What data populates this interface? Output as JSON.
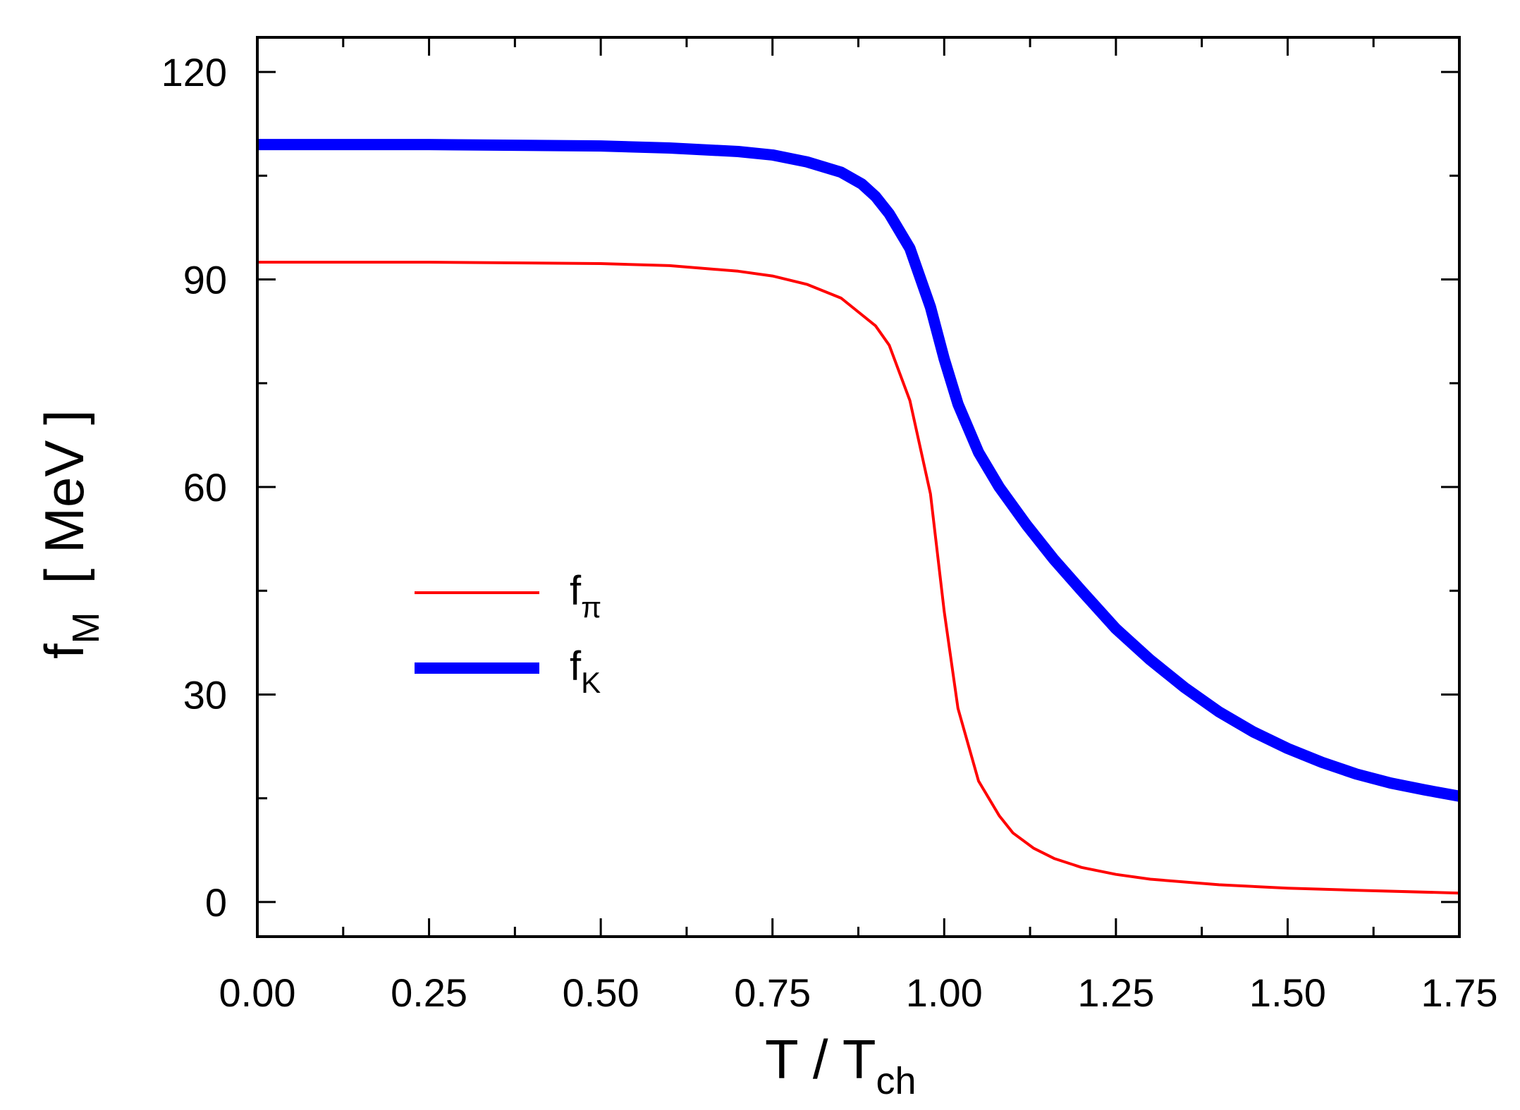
{
  "chart_data": {
    "type": "line",
    "title": "",
    "xlabel": {
      "main": "T / T",
      "sub": "ch"
    },
    "ylabel": {
      "main": "f",
      "sub": "M",
      "unit": "[ MeV ]"
    },
    "xlim": [
      0.0,
      1.75
    ],
    "ylim": [
      -5,
      125
    ],
    "x_ticks": [
      0.0,
      0.25,
      0.5,
      0.75,
      1.0,
      1.25,
      1.5,
      1.75
    ],
    "x_tick_labels": [
      "0.00",
      "0.25",
      "0.50",
      "0.75",
      "1.00",
      "1.25",
      "1.50",
      "1.75"
    ],
    "y_ticks": [
      0,
      30,
      60,
      90,
      120
    ],
    "y_tick_labels": [
      "0",
      "30",
      "60",
      "90",
      "120"
    ],
    "x_minor_step": 0.125,
    "y_minor_step": 15,
    "grid": false,
    "legend_position": "center-left",
    "series": [
      {
        "name": "f_pi",
        "label_main": "f",
        "label_sub": "π",
        "color": "#ff0000",
        "x": [
          0.0,
          0.25,
          0.5,
          0.6,
          0.7,
          0.75,
          0.8,
          0.85,
          0.9,
          0.92,
          0.95,
          0.98,
          1.0,
          1.02,
          1.05,
          1.08,
          1.1,
          1.13,
          1.16,
          1.2,
          1.25,
          1.3,
          1.4,
          1.5,
          1.6,
          1.75
        ],
        "y": [
          92.5,
          92.5,
          92.3,
          92.0,
          91.2,
          90.5,
          89.3,
          87.3,
          83.3,
          80.5,
          72.5,
          59.0,
          42.0,
          28.0,
          17.5,
          12.5,
          10.0,
          7.8,
          6.3,
          5.0,
          4.0,
          3.3,
          2.5,
          2.0,
          1.7,
          1.3
        ]
      },
      {
        "name": "f_K",
        "label_main": "f",
        "label_sub": "K",
        "color": "#0000ff",
        "x": [
          0.0,
          0.25,
          0.5,
          0.6,
          0.7,
          0.75,
          0.8,
          0.85,
          0.88,
          0.9,
          0.92,
          0.95,
          0.98,
          1.0,
          1.02,
          1.05,
          1.08,
          1.12,
          1.16,
          1.2,
          1.25,
          1.3,
          1.35,
          1.4,
          1.45,
          1.5,
          1.55,
          1.6,
          1.65,
          1.7,
          1.75
        ],
        "y": [
          109.5,
          109.5,
          109.3,
          109.0,
          108.5,
          108.0,
          107.0,
          105.5,
          103.8,
          102.0,
          99.5,
          94.5,
          86.0,
          78.5,
          72.0,
          65.0,
          60.0,
          54.5,
          49.5,
          45.0,
          39.5,
          35.0,
          31.0,
          27.5,
          24.6,
          22.2,
          20.2,
          18.5,
          17.2,
          16.2,
          15.3
        ]
      }
    ]
  }
}
